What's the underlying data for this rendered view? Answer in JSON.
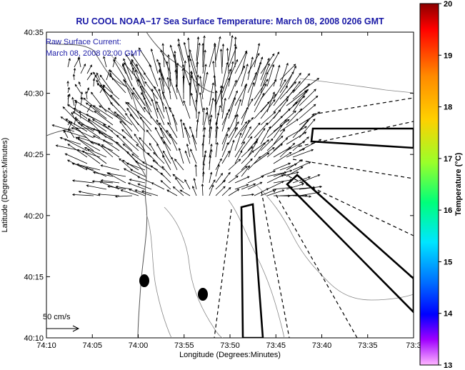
{
  "chart_data": {
    "type": "vector-field-map",
    "title": "RU COOL  NOAA−17  Sea Surface Temperature:  March 08, 2008 0206 GMT",
    "annotation_lines": [
      "Raw Surface Current:",
      "March 08, 2008 02:00 GMT"
    ],
    "xlabel": "Longitude (Degrees:Minutes)",
    "ylabel": "Latitude (Degrees:Minutes)",
    "x_ticks": [
      "74:10",
      "74:05",
      "74:00",
      "73:55",
      "73:50",
      "73:45",
      "73:40",
      "73:35",
      "73:3"
    ],
    "y_ticks": [
      "40:35",
      "40:30",
      "40:25",
      "40:20",
      "40:15",
      "40:10"
    ],
    "xlim_minutes_west": [
      70,
      30
    ],
    "ylim_minutes_north": [
      10,
      35
    ],
    "scale_label": "50 cm/s",
    "colorbar": {
      "label": "Temperature (°C)",
      "ticks": [
        "20",
        "19",
        "18",
        "17",
        "16",
        "15",
        "14",
        "13"
      ],
      "range": [
        13,
        20
      ]
    },
    "current_field_summary": "Strong outflow currents (up to ~50 cm/s) radiating north and northeast from the harbor mouth near 73:57W 40:19N",
    "colors": {
      "title": "#1a1aa6",
      "axes": "#000000",
      "contour": "#888888"
    }
  }
}
